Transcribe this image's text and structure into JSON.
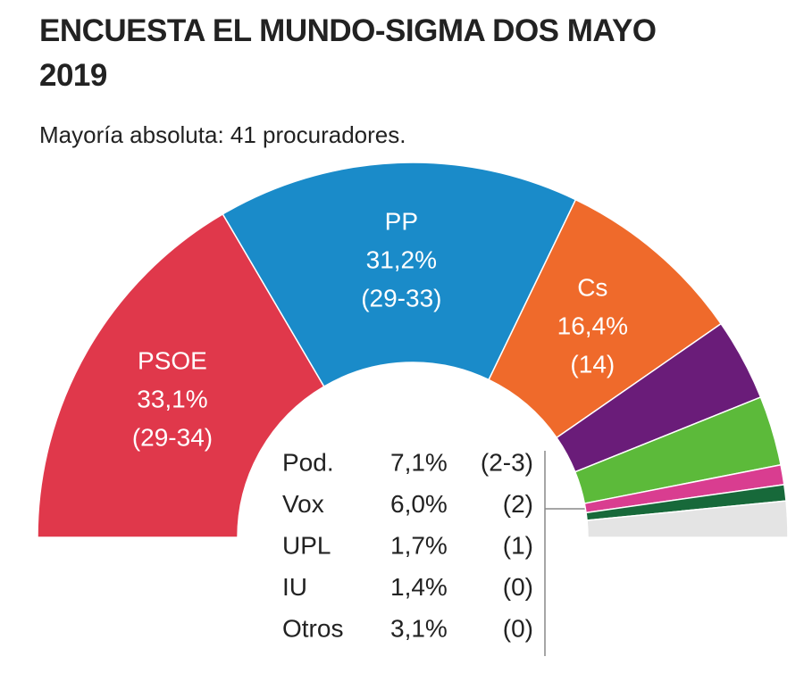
{
  "chart_data": {
    "type": "semi-donut",
    "title": "ENCUESTA EL MUNDO-SIGMA DOS MAYO 2019",
    "subtitle": "Mayoría absoluta: 41 procuradores.",
    "categories": [
      "PSOE",
      "PP",
      "Cs",
      "Pod.",
      "Vox",
      "UPL",
      "IU",
      "Otros"
    ],
    "values": [
      33.1,
      31.2,
      16.4,
      7.1,
      6.0,
      1.7,
      1.4,
      3.1
    ],
    "value_labels": [
      "33,1%",
      "31,2%",
      "16,4%",
      "7,1%",
      "6,0%",
      "1,7%",
      "1,4%",
      "3,1%"
    ],
    "seats": [
      "(29-34)",
      "(29-33)",
      "(14)",
      "(2-3)",
      "(2)",
      "(1)",
      "(0)",
      "(0)"
    ],
    "colors": [
      "#e0384b",
      "#1a8bc9",
      "#ef6a2b",
      "#6a1c79",
      "#5cba3a",
      "#d93d90",
      "#17693a",
      "#e4e4e4"
    ]
  }
}
